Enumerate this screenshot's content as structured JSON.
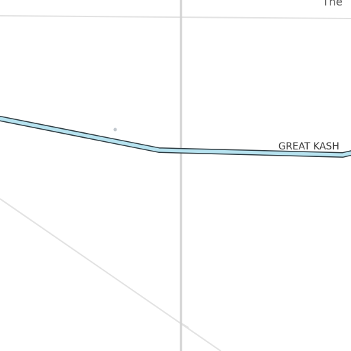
{
  "map": {
    "colors": {
      "background": "#ffffff",
      "minor_road": "#e2e2e2",
      "major_road": "#d2d2d2",
      "waterway_fill": "#b7e3f0",
      "waterway_casing": "#2d3a40",
      "poi_dot": "#c2c8ce"
    },
    "labels": {
      "waterway_name": "GREAT KASH",
      "place_name": "The"
    }
  }
}
